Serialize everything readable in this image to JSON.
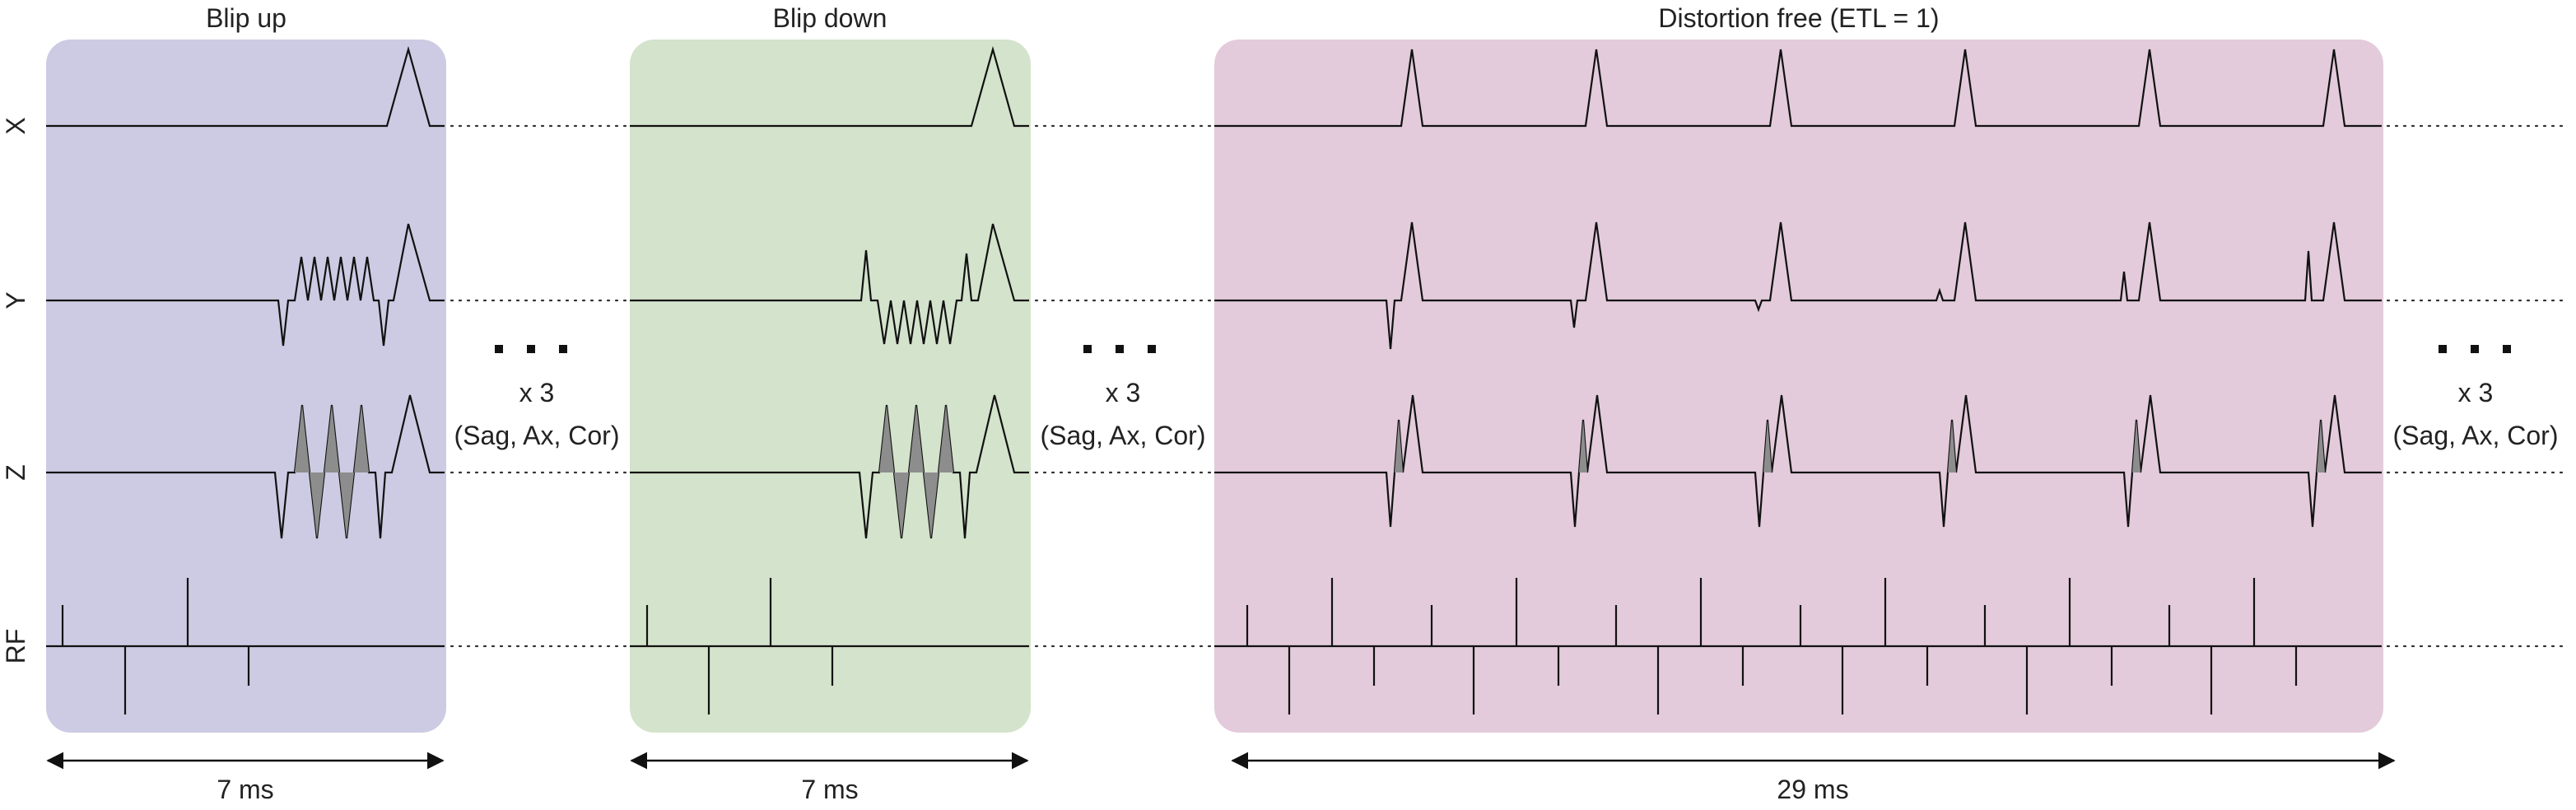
{
  "axes": [
    {
      "id": "x",
      "label": "X"
    },
    {
      "id": "y",
      "label": "Y"
    },
    {
      "id": "z",
      "label": "Z"
    },
    {
      "id": "rf",
      "label": "RF"
    }
  ],
  "blocks": [
    {
      "id": "blip-up",
      "title": "Blip up",
      "duration_label": "7 ms",
      "color": "#cccbe3"
    },
    {
      "id": "blip-down",
      "title": "Blip down",
      "duration_label": "7 ms",
      "color": "#d4e3cc"
    },
    {
      "id": "distortion-free",
      "title": "Distortion free (ETL = 1)",
      "duration_label": "29 ms",
      "color": "#e3cbdb"
    }
  ],
  "repeats": [
    {
      "ellipsis": "• • •",
      "count": "x 3",
      "planes": "(Sag, Ax, Cor)"
    },
    {
      "ellipsis": "• • •",
      "count": "x 3",
      "planes": "(Sag, Ax, Cor)"
    },
    {
      "ellipsis": "• • •",
      "count": "x 3",
      "planes": "(Sag, Ax, Cor)"
    }
  ]
}
